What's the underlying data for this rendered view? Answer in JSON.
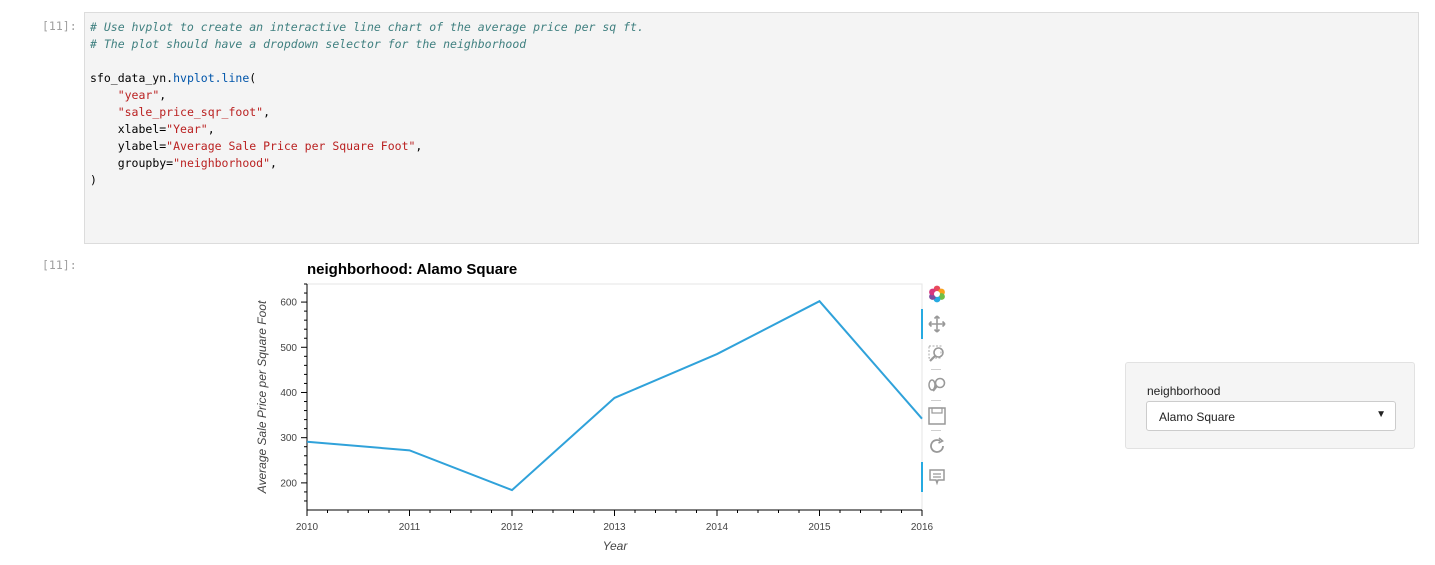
{
  "cells": {
    "input_prompt": "[11]:",
    "output_prompt": "[11]:",
    "code": {
      "comment1": "# Use hvplot to create an interactive line chart of the average price per sq ft.",
      "comment2": "# The plot should have a dropdown selector for the neighborhood",
      "line_obj": "sfo_data_yn.",
      "line_method": "hvplot.line",
      "line_paren": "(",
      "arg1": "\"year\"",
      "arg2": "\"sale_price_sqr_foot\"",
      "kw_xlabel": "xlabel=",
      "val_xlabel": "\"Year\"",
      "kw_ylabel": "ylabel=",
      "val_ylabel": "\"Average Sale Price per Square Foot\"",
      "kw_groupby": "groupby=",
      "val_groupby": "\"neighborhood\"",
      "comma": ",",
      "close": ")"
    }
  },
  "plot": {
    "title": "neighborhood: Alamo Square",
    "toolbar_icons": [
      "bokeh-logo-icon",
      "pan-icon",
      "box-zoom-icon",
      "wheel-zoom-icon",
      "save-icon",
      "reset-icon",
      "hover-icon"
    ]
  },
  "widget": {
    "label": "neighborhood",
    "selected": "Alamo Square",
    "arrow": "▼"
  },
  "chart_data": {
    "type": "line",
    "title": "neighborhood: Alamo Square",
    "xlabel": "Year",
    "ylabel": "Average Sale Price per Square Foot",
    "x": [
      2010,
      2011,
      2012,
      2013,
      2014,
      2015,
      2016
    ],
    "xticks": [
      "2010",
      "2011",
      "2012",
      "2013",
      "2014",
      "2015",
      "2016"
    ],
    "yticks": [
      "200",
      "300",
      "400",
      "500",
      "600"
    ],
    "ytick_values": [
      200,
      300,
      400,
      500,
      600
    ],
    "series": [
      {
        "values": [
          291,
          272,
          184,
          388,
          485,
          602,
          342
        ]
      }
    ],
    "xlim": [
      2010,
      2016
    ],
    "ylim": [
      140,
      640
    ],
    "line_color": "#30a2da",
    "grid": false
  }
}
